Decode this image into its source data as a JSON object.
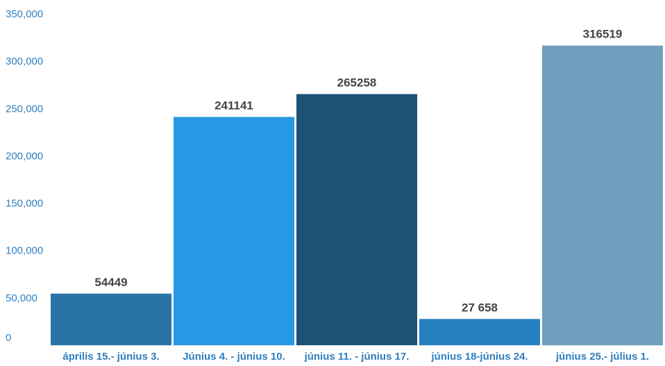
{
  "chart_data": {
    "type": "bar",
    "title": "",
    "xlabel": "",
    "ylabel": "",
    "categories": [
      "április 15.- június 3.",
      "Június 4. - június 10.",
      "június 11. - június 17.",
      "június 18-június 24.",
      "június 25.- július 1."
    ],
    "values": [
      54449,
      241141,
      265258,
      27658,
      316519
    ],
    "value_labels": [
      "54449",
      "241141",
      "265258",
      "27 658",
      "316519"
    ],
    "bar_colors": [
      "#2874a6",
      "#2898e4",
      "#1b5276",
      "#2480c1",
      "#6f9ebe"
    ],
    "ylim": [
      0,
      350000
    ],
    "y_ticks": [
      0,
      50000,
      100000,
      150000,
      200000,
      250000,
      300000,
      350000
    ],
    "y_tick_labels": [
      "0",
      "50,000",
      "100,000",
      "150,000",
      "200,000",
      "250,000",
      "300,000",
      "350,000"
    ],
    "grid": false,
    "legend": "none",
    "colors": {
      "axis_text": "#2f7fbf",
      "data_label_text": "#444444",
      "baseline": "#dfe6ec"
    }
  }
}
